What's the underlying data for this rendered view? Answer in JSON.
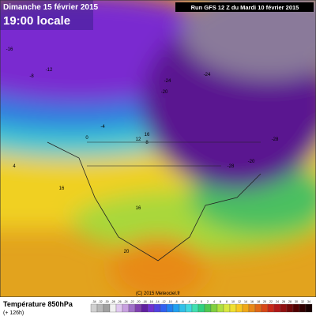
{
  "header": {
    "date": "Dimanche 15 février 2015",
    "time": "19:00 locale",
    "run": "Run GFS 12 Z du Mardi 10 février 2015"
  },
  "footer": {
    "title": "Température 850hPa",
    "lead": "(+ 126h)",
    "copyright": "(C) 2015 Meteociel.fr"
  },
  "scale": {
    "values": [
      -34,
      -32,
      -30,
      -28,
      -26,
      -24,
      -22,
      -20,
      -18,
      -16,
      -14,
      -12,
      -10,
      -8,
      -6,
      -4,
      -2,
      0,
      2,
      4,
      6,
      8,
      10,
      12,
      14,
      16,
      18,
      20,
      22,
      24,
      26,
      28,
      30,
      32,
      34
    ]
  },
  "map": {
    "labels": [
      -16,
      -12,
      -8,
      -20,
      -24,
      -24,
      -28,
      -20,
      -28,
      -4,
      0,
      12,
      16,
      8,
      16,
      4,
      16,
      20
    ]
  }
}
